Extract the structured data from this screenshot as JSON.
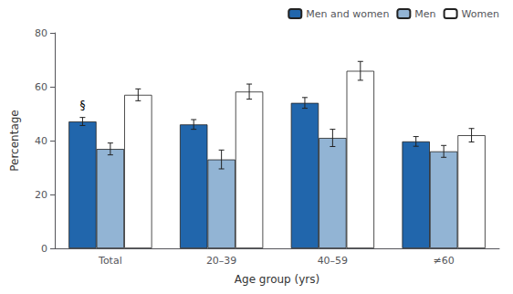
{
  "chart_data": {
    "type": "bar",
    "categories": [
      "Total",
      "20–39",
      "40–59",
      "≠60"
    ],
    "series": [
      {
        "name": "Men and women",
        "color": "#2166ac",
        "values": [
          47.1,
          46.0,
          54.0,
          39.7
        ],
        "errors": [
          1.5,
          1.8,
          2.0,
          1.8
        ]
      },
      {
        "name": "Men",
        "color": "#92b4d4",
        "values": [
          36.9,
          33.0,
          41.0,
          36.0
        ],
        "errors": [
          2.2,
          3.5,
          3.2,
          2.2
        ]
      },
      {
        "name": "Women",
        "color": "#ffffff",
        "values": [
          57.0,
          58.2,
          65.9,
          42.0
        ],
        "errors": [
          2.2,
          2.8,
          3.5,
          2.5
        ]
      }
    ],
    "xlabel": "Age group (yrs)",
    "ylabel": "Percentage",
    "ylim": [
      0,
      80
    ],
    "yticks": [
      0,
      20,
      40,
      60,
      80
    ],
    "grid": false,
    "legend": "upper right",
    "annotation": "§"
  }
}
